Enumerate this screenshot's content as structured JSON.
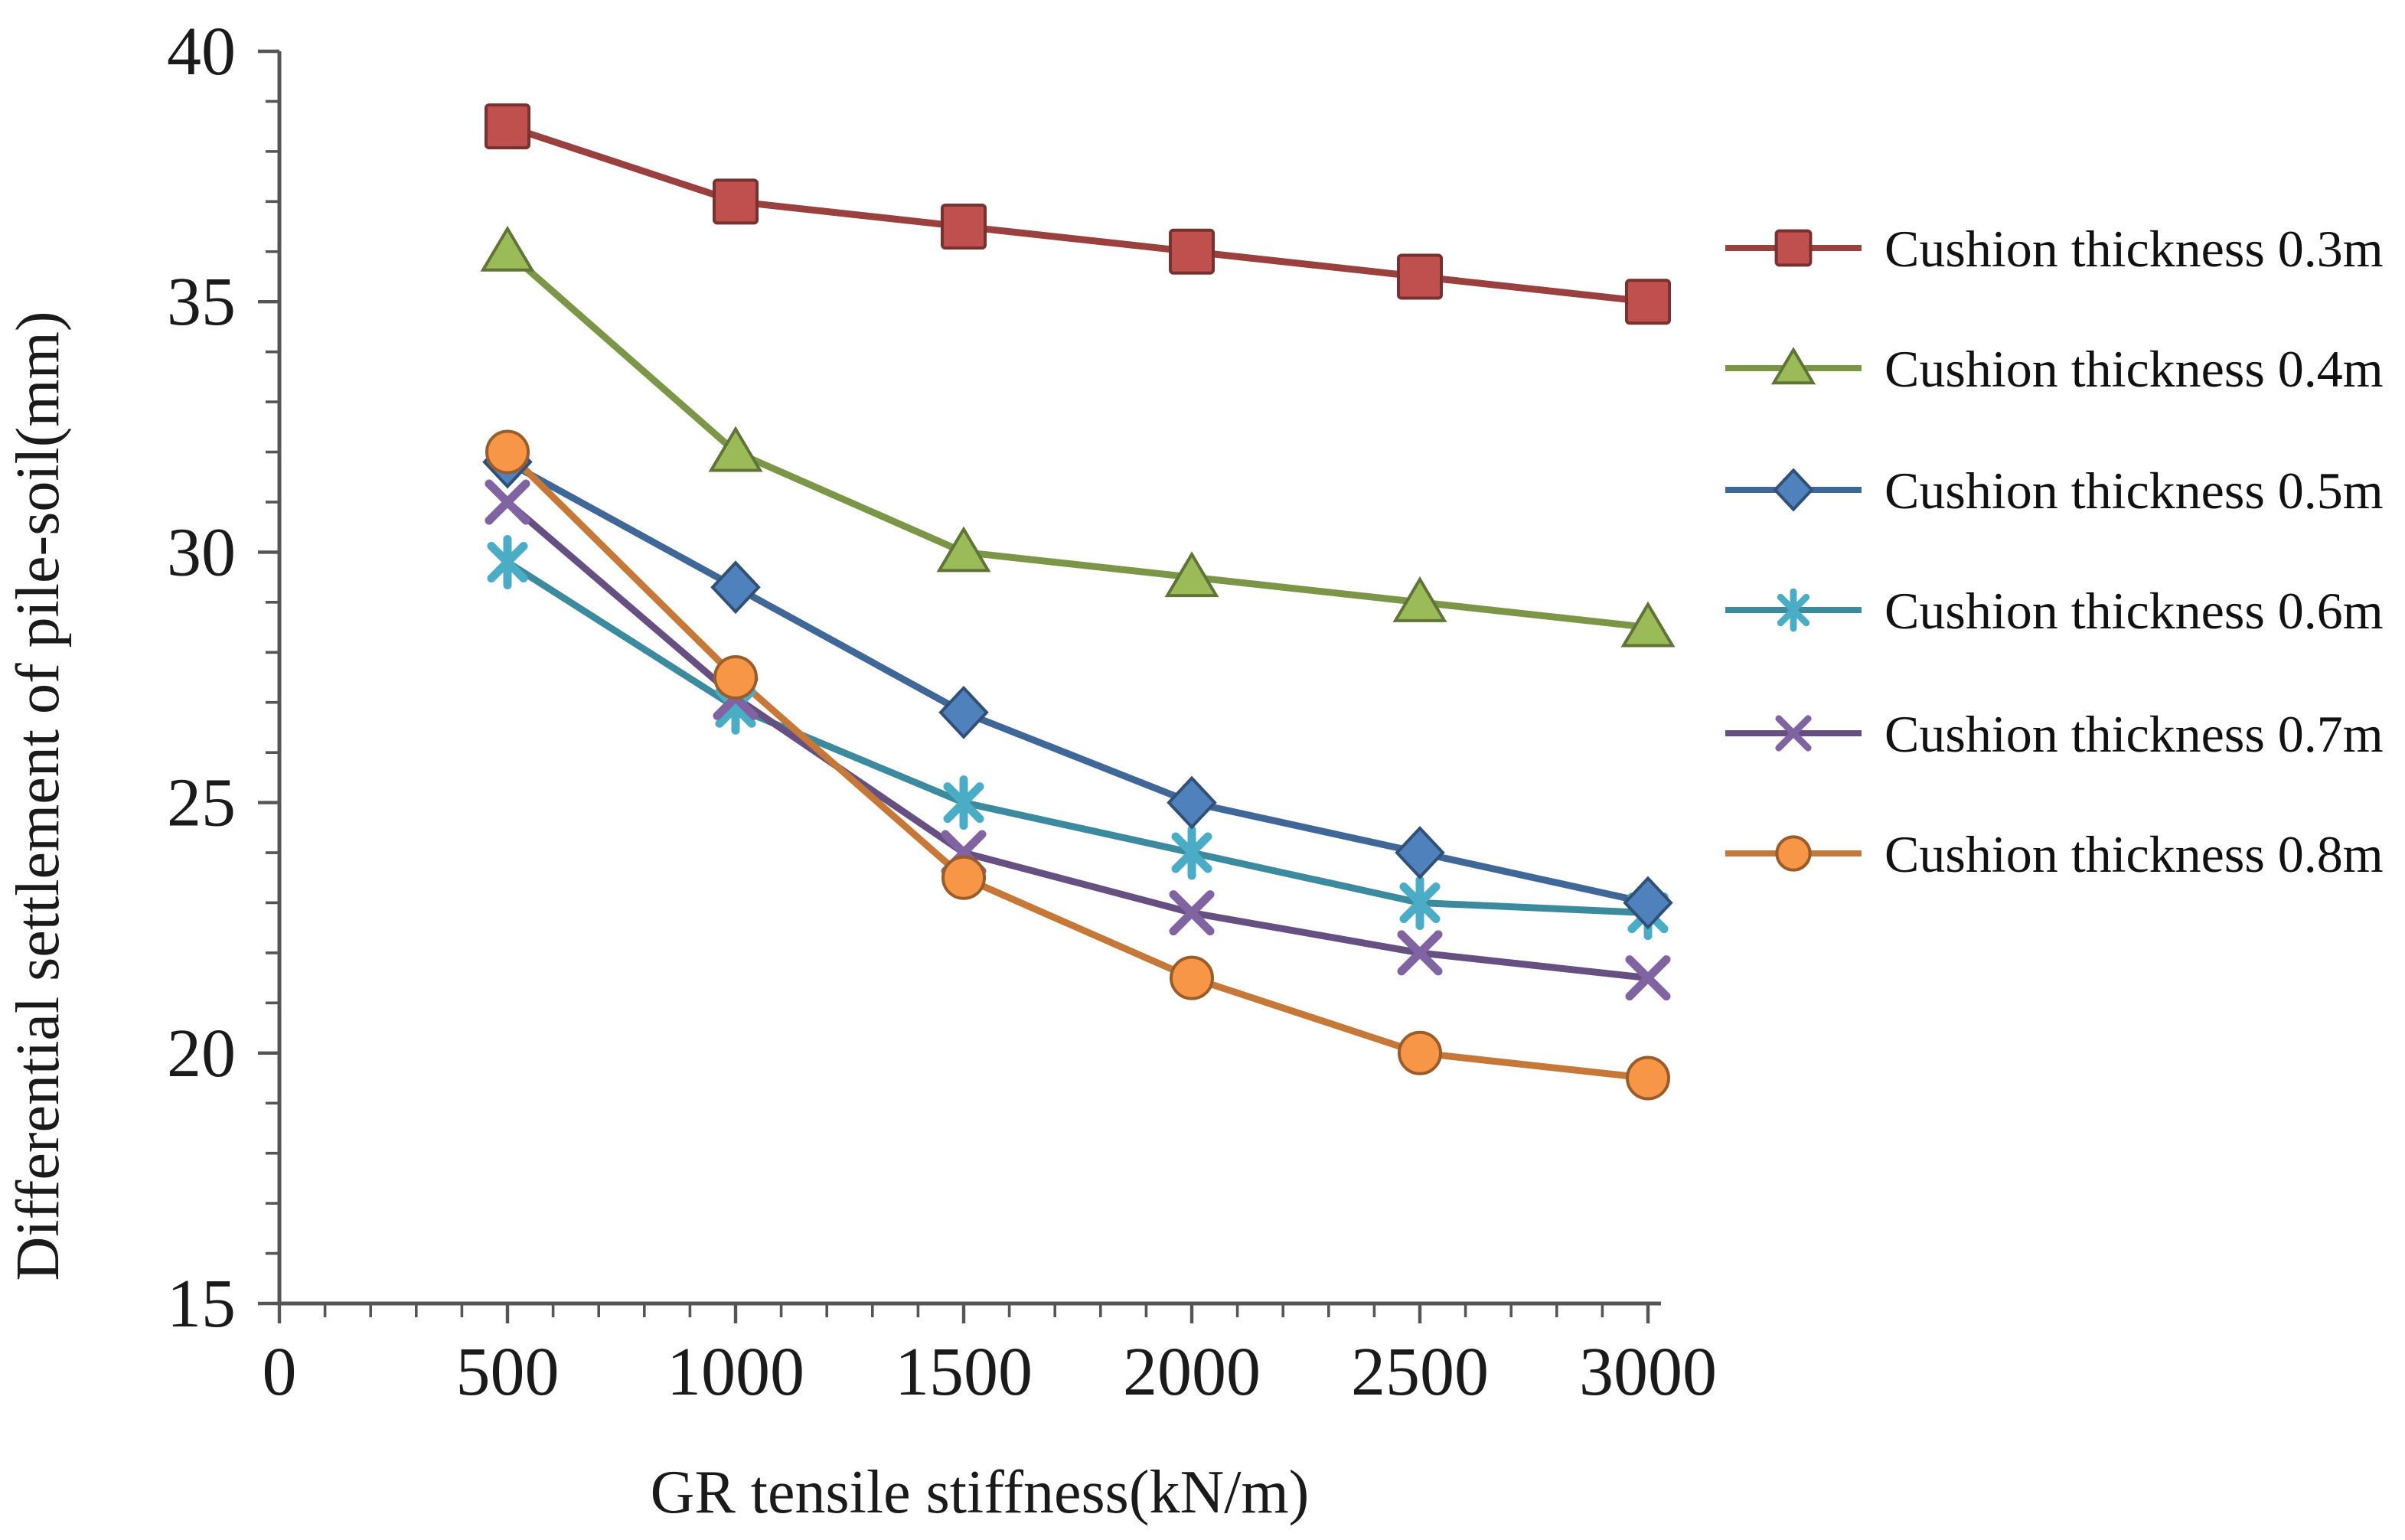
{
  "figure": {
    "background_color": "#ffffff",
    "text_color": "#1a1a1a",
    "axis_color": "#555555"
  },
  "chart_data": {
    "type": "line",
    "title": "",
    "xlabel": "GR tensile stiffness(kN/m)",
    "ylabel": "Differential settlement of pile-soil(mm)",
    "x": [
      500,
      1000,
      1500,
      2000,
      2500,
      3000
    ],
    "x_ticks": [
      0,
      500,
      1000,
      1500,
      2000,
      2500,
      3000
    ],
    "x_minor_tick_step": 100,
    "y_ticks": [
      15,
      20,
      25,
      30,
      35,
      40
    ],
    "y_minor_tick_step": 1,
    "xlim": [
      0,
      3030
    ],
    "ylim": [
      15,
      40
    ],
    "grid": false,
    "legend_position": "right",
    "series": [
      {
        "name": "Cushion thickness 0.3m",
        "marker": "square",
        "color": "#C0504D",
        "values": [
          38.5,
          37.0,
          36.5,
          36.0,
          35.5,
          35.0
        ]
      },
      {
        "name": "Cushion thickness 0.4m",
        "marker": "triangle",
        "color": "#9BBB59",
        "values": [
          36.0,
          32.0,
          30.0,
          29.5,
          29.0,
          28.5
        ]
      },
      {
        "name": "Cushion thickness 0.5m",
        "marker": "diamond",
        "color": "#4F81BD",
        "values": [
          31.8,
          29.3,
          26.8,
          25.0,
          24.0,
          23.0
        ]
      },
      {
        "name": "Cushion thickness 0.6m",
        "marker": "asterisk",
        "color": "#4BACC6",
        "values": [
          29.8,
          26.9,
          25.0,
          24.0,
          23.0,
          22.8
        ]
      },
      {
        "name": "Cushion thickness 0.7m",
        "marker": "x",
        "color": "#8064A2",
        "values": [
          31.0,
          27.1,
          24.0,
          22.8,
          22.0,
          21.5
        ]
      },
      {
        "name": "Cushion thickness 0.8m",
        "marker": "circle",
        "color": "#F79646",
        "values": [
          32.0,
          27.5,
          23.5,
          21.5,
          20.0,
          19.5
        ]
      }
    ]
  }
}
